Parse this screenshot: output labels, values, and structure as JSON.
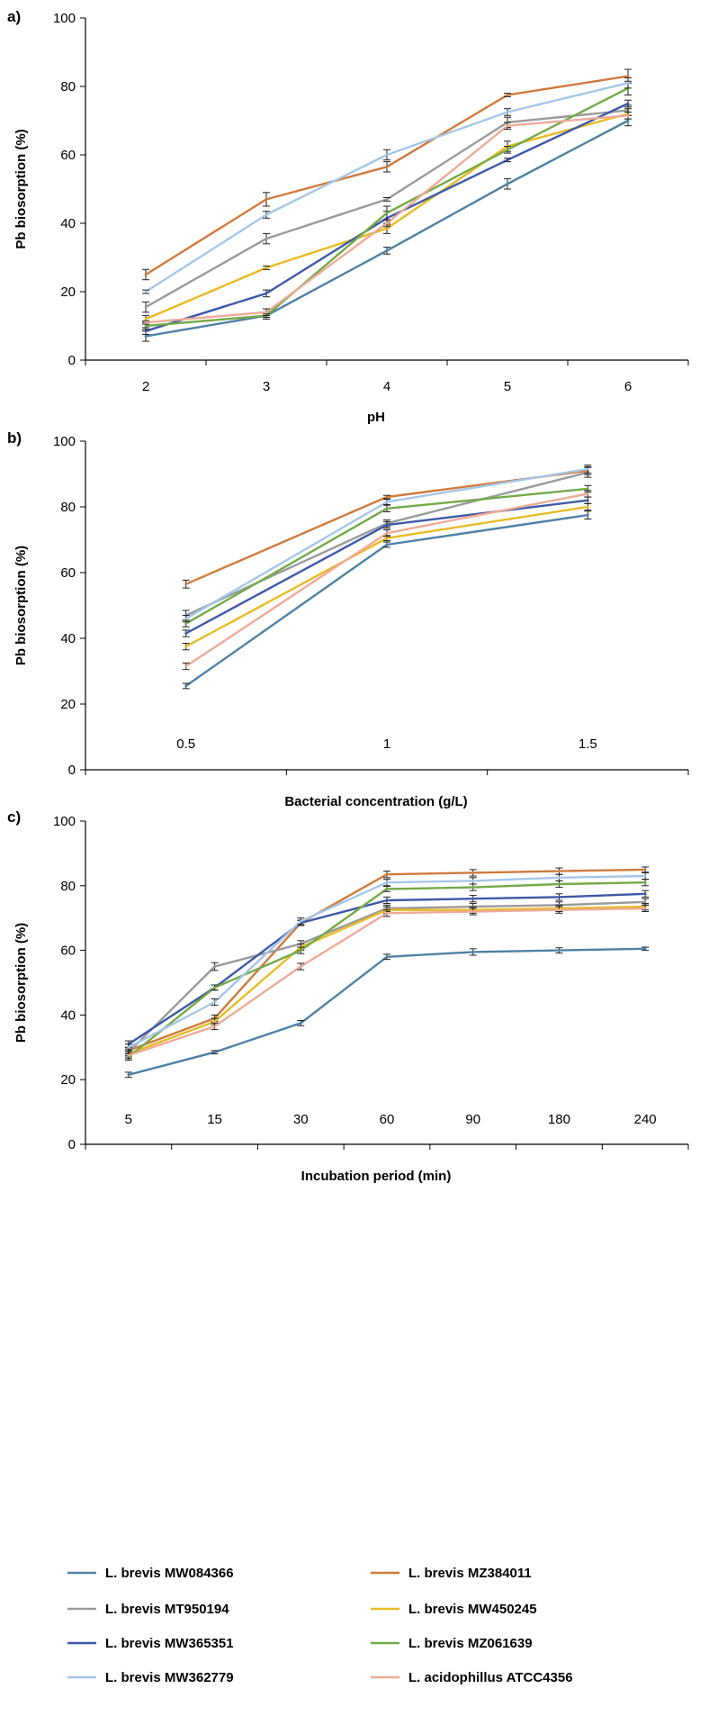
{
  "figure": {
    "panels": [
      "a)",
      "b)",
      "c)"
    ]
  },
  "chart_data": [
    {
      "panel": "a)",
      "type": "line",
      "xlabel": "pH",
      "ylabel": "Pb biosorption (%)",
      "categories": [
        "2",
        "3",
        "4",
        "5",
        "6"
      ],
      "ylim": [
        0,
        100
      ],
      "yticks": [
        "0",
        "20",
        "40",
        "60",
        "80",
        "100"
      ],
      "series": [
        {
          "name": "L. brevis  MW084366",
          "color": "#4f81a6",
          "values": [
            7,
            13,
            32,
            51.5,
            70
          ],
          "errors": [
            1.5,
            1,
            1,
            1.5,
            1.5
          ]
        },
        {
          "name": "L. brevis MZ384011",
          "color": "#d07a3c",
          "values": [
            25,
            47,
            56.5,
            77.5,
            83
          ],
          "errors": [
            1.5,
            2,
            1.5,
            0.5,
            2
          ]
        },
        {
          "name": "L. brevis MT950194",
          "color": "#9a9a9a",
          "values": [
            15.5,
            35.5,
            47,
            69.5,
            73
          ],
          "errors": [
            1.5,
            1.5,
            0.5,
            1.5,
            1.5
          ]
        },
        {
          "name": "L. brevis MW450245",
          "color": "#e8bb22",
          "values": [
            12,
            27,
            38.5,
            62.5,
            72
          ],
          "errors": [
            1,
            0.5,
            1.5,
            1.5,
            1.5
          ]
        },
        {
          "name": "L. brevis MW365351",
          "color": "#3e58a8",
          "values": [
            8.5,
            19.5,
            41.5,
            58.5,
            75
          ],
          "errors": [
            1,
            1,
            2,
            0.5,
            1
          ]
        },
        {
          "name": "L. brevis MZ061639",
          "color": "#74aa48",
          "values": [
            10,
            13,
            43,
            61.5,
            79.5
          ],
          "errors": [
            1,
            0.5,
            2,
            1,
            2
          ]
        },
        {
          "name": "L. brevis MW362779",
          "color": "#a6c6e8",
          "values": [
            20,
            42.5,
            60,
            72.5,
            81
          ],
          "errors": [
            0.5,
            1,
            1.5,
            1,
            1.5
          ]
        },
        {
          "name": "L. acidophillus  ATCC4356",
          "color": "#eeaa98",
          "values": [
            11,
            14,
            40,
            68.5,
            71.5
          ],
          "errors": [
            0.5,
            1,
            1,
            1,
            1
          ]
        }
      ]
    },
    {
      "panel": "b)",
      "type": "line",
      "xlabel": "Bacterial concentration (g/L)",
      "ylabel": "Pb biosorption (%)",
      "categories": [
        "0.5",
        "1",
        "1.5"
      ],
      "ylim": [
        0,
        100
      ],
      "yticks": [
        "0",
        "20",
        "40",
        "60",
        "80",
        "100"
      ],
      "series": [
        {
          "name": "L. brevis  MW084366",
          "color": "#4f81a6",
          "values": [
            25.5,
            68.5,
            77.5
          ],
          "errors": [
            0.8,
            0.8,
            1.2
          ]
        },
        {
          "name": "L. brevis MZ384011",
          "color": "#d07a3c",
          "values": [
            56.5,
            83,
            91
          ],
          "errors": [
            1.2,
            0.5,
            1.2
          ]
        },
        {
          "name": "L. brevis MT950194",
          "color": "#9a9a9a",
          "values": [
            47,
            75,
            90.5
          ],
          "errors": [
            1.5,
            1,
            1.5
          ]
        },
        {
          "name": "L. brevis MW450245",
          "color": "#e8bb22",
          "values": [
            37.5,
            70.5,
            80
          ],
          "errors": [
            1,
            0.8,
            1
          ]
        },
        {
          "name": "L. brevis MW365351",
          "color": "#3e58a8",
          "values": [
            41.5,
            74.5,
            82
          ],
          "errors": [
            1,
            1,
            1
          ]
        },
        {
          "name": "L. brevis MZ061639",
          "color": "#74aa48",
          "values": [
            44.5,
            79.5,
            85.5
          ],
          "errors": [
            1,
            1,
            1
          ]
        },
        {
          "name": "L. brevis MW362779",
          "color": "#a6c6e8",
          "values": [
            46,
            81.5,
            91.5
          ],
          "errors": [
            1,
            0.8,
            1.2
          ]
        },
        {
          "name": "L. acidophillus  ATCC4356",
          "color": "#eeaa98",
          "values": [
            31.5,
            72,
            84
          ],
          "errors": [
            1,
            1,
            1
          ]
        }
      ]
    },
    {
      "panel": "c)",
      "type": "line",
      "xlabel": "Incubation period (min)",
      "ylabel": "Pb biosorption (%)",
      "categories": [
        "5",
        "15",
        "30",
        "60",
        "90",
        "180",
        "240"
      ],
      "ylim": [
        0,
        100
      ],
      "yticks": [
        "0",
        "20",
        "40",
        "60",
        "80",
        "100"
      ],
      "series": [
        {
          "name": "L. brevis  MW084366",
          "color": "#4f81a6",
          "values": [
            21.5,
            28.5,
            37.5,
            58,
            59.5,
            60,
            60.5
          ],
          "errors": [
            0.8,
            0.5,
            0.8,
            0.8,
            1,
            0.8,
            0.5
          ]
        },
        {
          "name": "L. brevis MZ384011",
          "color": "#d07a3c",
          "values": [
            29,
            39,
            68.5,
            83.5,
            84,
            84.5,
            85
          ],
          "errors": [
            1,
            1,
            0.8,
            1,
            1,
            1,
            0.8
          ]
        },
        {
          "name": "L. brevis MT950194",
          "color": "#9a9a9a",
          "values": [
            28.5,
            55,
            62,
            73,
            73.5,
            74,
            75
          ],
          "errors": [
            1,
            1.2,
            1,
            1,
            1,
            1,
            1
          ]
        },
        {
          "name": "L. brevis MW450245",
          "color": "#e8bb22",
          "values": [
            28,
            38,
            61,
            72.5,
            72.5,
            73,
            73.5
          ],
          "errors": [
            1,
            1,
            1,
            1,
            1,
            1,
            1
          ]
        },
        {
          "name": "L. brevis MW365351",
          "color": "#3e58a8",
          "values": [
            31,
            48.5,
            68.5,
            75.5,
            76,
            76.5,
            77.5
          ],
          "errors": [
            1,
            0.8,
            0.8,
            1,
            1,
            1,
            1
          ]
        },
        {
          "name": "L. brevis MZ061639",
          "color": "#74aa48",
          "values": [
            27,
            48.5,
            60,
            79,
            79.5,
            80.5,
            81
          ],
          "errors": [
            1,
            0.8,
            1,
            0.8,
            1,
            1,
            1
          ]
        },
        {
          "name": "L. brevis MW362779",
          "color": "#a6c6e8",
          "values": [
            30,
            44,
            69,
            81,
            81.5,
            82.5,
            83
          ],
          "errors": [
            1,
            1,
            1,
            1,
            1,
            1,
            1
          ]
        },
        {
          "name": "L. acidophillus  ATCC4356",
          "color": "#eeaa98",
          "values": [
            27.5,
            36.5,
            55,
            71.5,
            72,
            72.5,
            73
          ],
          "errors": [
            1,
            1,
            1,
            1,
            1,
            1,
            1
          ]
        }
      ]
    }
  ],
  "legend": {
    "items": [
      {
        "name": "L. brevis  MW084366",
        "color": "#4f81a6"
      },
      {
        "name": "L. brevis MZ384011",
        "color": "#d07a3c"
      },
      {
        "name": "L. brevis MT950194",
        "color": "#9a9a9a"
      },
      {
        "name": "L. brevis MW450245",
        "color": "#e8bb22"
      },
      {
        "name": "L. brevis MW365351",
        "color": "#3e58a8"
      },
      {
        "name": "L. brevis MZ061639",
        "color": "#74aa48"
      },
      {
        "name": "L. brevis MW362779",
        "color": "#a6c6e8"
      },
      {
        "name": "L. acidophillus  ATCC4356",
        "color": "#eeaa98"
      }
    ]
  }
}
